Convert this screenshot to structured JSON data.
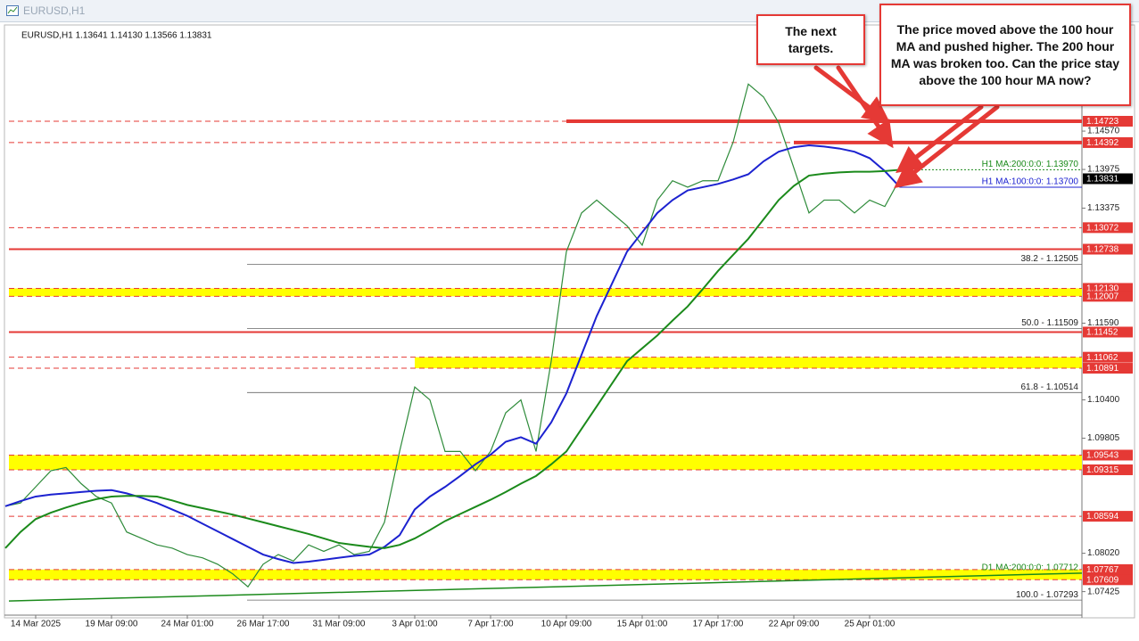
{
  "window_title": "EURUSD,H1",
  "chart_data": {
    "type": "line",
    "info": "EURUSD,H1  1.13641 1.14130 1.13566 1.13831",
    "categories": [
      null,
      null,
      "14 Mar 2025",
      null,
      null,
      null,
      null,
      "19 Mar 09:00",
      null,
      null,
      null,
      null,
      "24 Mar 01:00",
      null,
      null,
      null,
      null,
      "26 Mar 17:00",
      null,
      null,
      null,
      null,
      "31 Mar 09:00",
      null,
      null,
      null,
      null,
      "3 Apr 01:00",
      null,
      null,
      null,
      null,
      "7 Apr 17:00",
      null,
      null,
      null,
      null,
      "10 Apr 09:00",
      null,
      null,
      null,
      null,
      "15 Apr 01:00",
      null,
      null,
      null,
      null,
      "17 Apr 17:00",
      null,
      null,
      null,
      null,
      "22 Apr 09:00",
      null,
      null,
      null,
      null,
      "25 Apr 01:00",
      null,
      null
    ],
    "series": [
      {
        "color": "#2e8b3a",
        "values": [
          1.0875,
          1.088,
          1.0905,
          1.093,
          1.0935,
          1.091,
          1.089,
          1.088,
          1.0835,
          1.0825,
          1.0815,
          1.081,
          1.08,
          1.0795,
          1.0785,
          1.077,
          1.075,
          1.0785,
          1.08,
          1.079,
          1.0815,
          1.0805,
          1.0815,
          1.08,
          1.0805,
          1.085,
          1.096,
          1.106,
          1.104,
          1.096,
          1.096,
          1.093,
          1.096,
          1.102,
          1.104,
          1.096,
          1.11,
          1.127,
          1.133,
          1.135,
          1.133,
          1.131,
          1.128,
          1.135,
          1.138,
          1.137,
          1.138,
          1.138,
          1.144,
          1.153,
          1.151,
          1.147,
          1.14,
          1.133,
          1.135,
          1.135,
          1.133,
          1.135,
          1.134,
          1.1383
        ]
      },
      {
        "name": "H1 MA:100:0:0: 1.13700",
        "color": "#1c22d0",
        "level": 1.137,
        "values": [
          1.0875,
          1.0883,
          1.089,
          1.0893,
          1.0895,
          1.0897,
          1.0899,
          1.09,
          1.0895,
          1.0888,
          1.088,
          1.087,
          1.086,
          1.0848,
          1.0836,
          1.0824,
          1.0812,
          1.08,
          1.0793,
          1.0787,
          1.0789,
          1.0792,
          1.0795,
          1.0798,
          1.08,
          1.0812,
          1.083,
          1.087,
          1.089,
          1.0905,
          1.0922,
          1.094,
          1.0955,
          1.0975,
          1.0982,
          1.0972,
          1.1005,
          1.105,
          1.111,
          1.117,
          1.122,
          1.127,
          1.13,
          1.133,
          1.135,
          1.1365,
          1.137,
          1.1375,
          1.1382,
          1.139,
          1.141,
          1.1425,
          1.1432,
          1.1435,
          1.1433,
          1.143,
          1.1425,
          1.1415,
          1.1395,
          1.137
        ]
      },
      {
        "name": "H1 MA:200:0:0: 1.13970",
        "color": "#1b8a1b",
        "level": 1.1397,
        "values": [
          1.081,
          1.0835,
          1.0855,
          1.0865,
          1.0873,
          1.088,
          1.0886,
          1.089,
          1.0891,
          1.0891,
          1.089,
          1.0884,
          1.0877,
          1.0872,
          1.0867,
          1.0862,
          1.0856,
          1.085,
          1.0844,
          1.0838,
          1.0832,
          1.0825,
          1.0818,
          1.0815,
          1.0812,
          1.081,
          1.0815,
          1.0825,
          1.0838,
          1.0852,
          1.0863,
          1.0874,
          1.0885,
          1.0897,
          1.091,
          1.0922,
          1.094,
          1.096,
          1.0995,
          1.103,
          1.1065,
          1.11,
          1.112,
          1.114,
          1.1163,
          1.1185,
          1.1212,
          1.124,
          1.1265,
          1.129,
          1.132,
          1.135,
          1.1372,
          1.1388,
          1.1391,
          1.1393,
          1.1394,
          1.1394,
          1.1395,
          1.1397
        ]
      }
    ],
    "d1_ma": {
      "name": "D1 MA:200:0:0: 1.07712",
      "start": 1.0728,
      "end": 1.07712
    },
    "ylim": [
      1.0706,
      1.1612
    ],
    "yticks": [
      {
        "value": 1.1457,
        "label": "1.14570"
      },
      1.13975,
      1.13375,
      {
        "value": 1.1159,
        "label": "1.11590"
      },
      {
        "value": 1.104,
        "label": "1.10400"
      },
      1.09805,
      {
        "value": 1.0802,
        "label": "1.08020"
      },
      1.07425
    ],
    "levels": [
      {
        "value": 1.14723,
        "style": "dashed"
      },
      {
        "value": 1.14392,
        "style": "dashed"
      },
      {
        "value": 1.13072,
        "style": "dashed"
      },
      {
        "value": 1.12738,
        "style": "solid"
      },
      {
        "value": 1.11452,
        "style": "solid"
      },
      {
        "value": 1.08594,
        "style": "dashed"
      }
    ],
    "zones": [
      {
        "top": {
          "value": 1.1213,
          "label": "1.12130"
        },
        "bottom": 1.12007
      },
      {
        "top": 1.11062,
        "bottom": 1.10891
      },
      {
        "top": 1.09543,
        "bottom": 1.09315
      },
      {
        "top": 1.07767,
        "bottom": 1.07609
      }
    ],
    "fib": [
      {
        "label": "38.2 - 1.12505",
        "value": 1.12505
      },
      {
        "label": "50.0 - 1.11509",
        "value": 1.11509
      },
      {
        "label": "61.8 - 1.10514",
        "value": 1.10514
      },
      {
        "label": "100.0 - 1.07293",
        "value": 1.07293
      }
    ],
    "current_price": 1.13831
  },
  "annotations": [
    "The next targets.",
    "The price moved above the 100 hour MA and pushed higher. The 200 hour MA was broken too. Can the price stay above the 100 hour MA now?"
  ]
}
